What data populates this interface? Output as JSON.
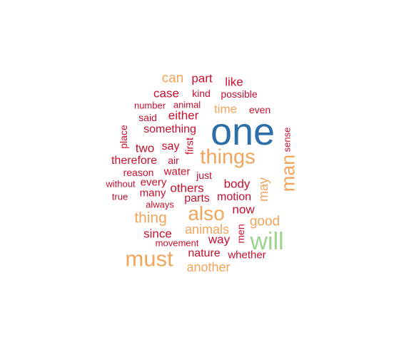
{
  "palette": {
    "blue": "#2b6ea8",
    "green": "#9dd38f",
    "orange": "#f2a55b",
    "red": "#c8102e"
  },
  "words": [
    {
      "text": "one",
      "color": "blue"
    },
    {
      "text": "will",
      "color": "green"
    },
    {
      "text": "must",
      "color": "orange"
    },
    {
      "text": "things",
      "color": "orange"
    },
    {
      "text": "also",
      "color": "orange"
    },
    {
      "text": "man",
      "color": "orange"
    },
    {
      "text": "thing",
      "color": "orange"
    },
    {
      "text": "animals",
      "color": "orange"
    },
    {
      "text": "another",
      "color": "orange"
    },
    {
      "text": "good",
      "color": "orange"
    },
    {
      "text": "may",
      "color": "orange"
    },
    {
      "text": "can",
      "color": "orange"
    },
    {
      "text": "time",
      "color": "orange"
    },
    {
      "text": "part",
      "color": "red"
    },
    {
      "text": "like",
      "color": "red"
    },
    {
      "text": "case",
      "color": "red"
    },
    {
      "text": "kind",
      "color": "red"
    },
    {
      "text": "possible",
      "color": "red"
    },
    {
      "text": "number",
      "color": "red"
    },
    {
      "text": "animal",
      "color": "red"
    },
    {
      "text": "even",
      "color": "red"
    },
    {
      "text": "said",
      "color": "red"
    },
    {
      "text": "either",
      "color": "red"
    },
    {
      "text": "something",
      "color": "red"
    },
    {
      "text": "place",
      "color": "red"
    },
    {
      "text": "first",
      "color": "red"
    },
    {
      "text": "sense",
      "color": "red"
    },
    {
      "text": "two",
      "color": "red"
    },
    {
      "text": "say",
      "color": "red"
    },
    {
      "text": "therefore",
      "color": "red"
    },
    {
      "text": "air",
      "color": "red"
    },
    {
      "text": "reason",
      "color": "red"
    },
    {
      "text": "water",
      "color": "red"
    },
    {
      "text": "just",
      "color": "red"
    },
    {
      "text": "body",
      "color": "red"
    },
    {
      "text": "without",
      "color": "red"
    },
    {
      "text": "every",
      "color": "red"
    },
    {
      "text": "others",
      "color": "red"
    },
    {
      "text": "true",
      "color": "red"
    },
    {
      "text": "many",
      "color": "red"
    },
    {
      "text": "parts",
      "color": "red"
    },
    {
      "text": "motion",
      "color": "red"
    },
    {
      "text": "always",
      "color": "red"
    },
    {
      "text": "now",
      "color": "red"
    },
    {
      "text": "since",
      "color": "red"
    },
    {
      "text": "men",
      "color": "red"
    },
    {
      "text": "way",
      "color": "red"
    },
    {
      "text": "movement",
      "color": "red"
    },
    {
      "text": "nature",
      "color": "red"
    },
    {
      "text": "whether",
      "color": "red"
    }
  ]
}
